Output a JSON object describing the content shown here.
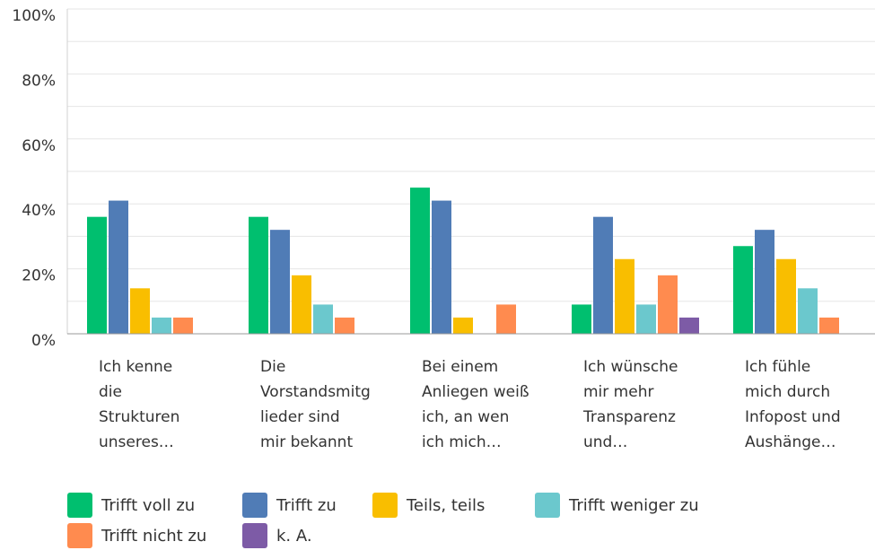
{
  "chart_data": {
    "type": "bar",
    "categories": [
      [
        "Ich kenne",
        "die",
        "Strukturen",
        "unseres…"
      ],
      [
        "Die",
        "Vorstandsmitg",
        "lieder sind",
        "mir bekannt"
      ],
      [
        "Bei einem",
        "Anliegen weiß",
        "ich, an wen",
        "ich mich…"
      ],
      [
        "Ich wünsche",
        "mir mehr",
        "Transparenz",
        "und…"
      ],
      [
        "Ich fühle",
        "mich durch",
        "Infopost und",
        "Aushänge…"
      ]
    ],
    "series": [
      {
        "name": "Trifft voll zu",
        "color": "#00bf6f",
        "values": [
          36,
          36,
          45,
          9,
          27
        ]
      },
      {
        "name": "Trifft zu",
        "color": "#507cb6",
        "values": [
          41,
          32,
          41,
          36,
          32
        ]
      },
      {
        "name": "Teils, teils",
        "color": "#f9be00",
        "values": [
          14,
          18,
          5,
          23,
          23
        ]
      },
      {
        "name": "Trifft weniger zu",
        "color": "#6bc8cd",
        "values": [
          5,
          9,
          0,
          9,
          14
        ]
      },
      {
        "name": "Trifft nicht zu",
        "color": "#ff8b4f",
        "values": [
          5,
          5,
          9,
          18,
          5
        ]
      },
      {
        "name": "k. A.",
        "color": "#7d5ba6",
        "values": [
          0,
          0,
          0,
          5,
          0
        ]
      }
    ],
    "ylim": [
      0,
      100
    ],
    "yticks": [
      {
        "value": 0,
        "label": "0%"
      },
      {
        "value": 20,
        "label": "20%"
      },
      {
        "value": 40,
        "label": "40%"
      },
      {
        "value": 60,
        "label": "60%"
      },
      {
        "value": 80,
        "label": "80%"
      },
      {
        "value": 100,
        "label": "100%"
      }
    ],
    "yminor_ticks": [
      10,
      30,
      50,
      70,
      90
    ],
    "grid": true
  }
}
